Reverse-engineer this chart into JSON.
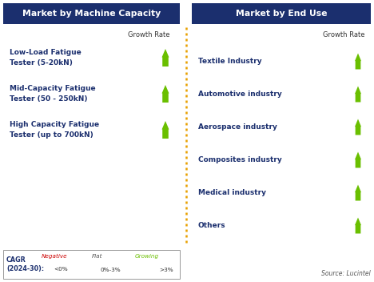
{
  "title_left": "Market by Machine Capacity",
  "title_right": "Market by End Use",
  "header_bg": "#1b2f6e",
  "header_text_color": "#ffffff",
  "growth_rate_label": "Growth Rate",
  "left_items": [
    "Low-Load Fatigue\nTester (5-20kN)",
    "Mid-Capacity Fatigue\nTester (50 - 250kN)",
    "High Capacity Fatigue\nTester (up to 700kN)"
  ],
  "right_items": [
    "Textile Industry",
    "Automotive industry",
    "Aerospace industry",
    "Composites industry",
    "Medical industry",
    "Others"
  ],
  "arrow_color_green": "#6abf00",
  "arrow_color_red": "#cc0000",
  "arrow_color_yellow": "#e8a000",
  "item_text_color": "#1b2f6e",
  "legend_label_cagr": "CAGR\n(2024-30):",
  "legend_negative_label": "Negative",
  "legend_negative_sublabel": "<0%",
  "legend_flat_label": "Flat",
  "legend_flat_sublabel": "0%-3%",
  "legend_growing_label": "Growing",
  "legend_growing_sublabel": ">3%",
  "source_text": "Source: Lucintel",
  "bg_color": "#ffffff",
  "divider_color": "#e8a000",
  "panel_bg": "#ffffff"
}
